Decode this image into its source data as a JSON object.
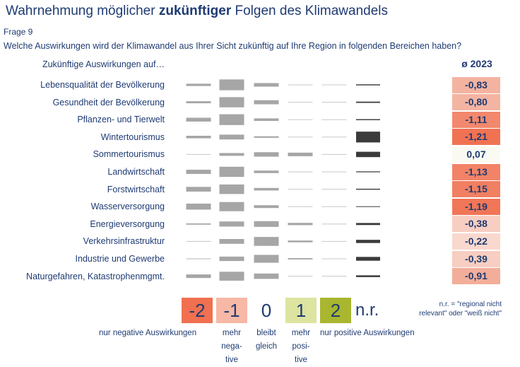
{
  "title": {
    "prefix": "Wahrnehmung möglicher ",
    "bold": "zukünftiger",
    "suffix": " Folgen des Klimawandels"
  },
  "frage": "Frage 9",
  "question": "Welche Auswirkungen wird der Klimawandel aus Ihrer Sicht zukünftig auf Ihre Region in folgenden Bereichen haben?",
  "header_label": "Zukünftige Auswirkungen auf…",
  "avg_header": "ø 2023",
  "colors": {
    "bar": "#a6a6a6",
    "nr_bar": "#3b3b3b",
    "neg2": "#f07050",
    "neg1": "#f7b8a5",
    "zero": "#ffffff",
    "pos1": "#dde4a0",
    "pos2": "#a9b62f",
    "text": "#1f3b73"
  },
  "chart_data": {
    "type": "table",
    "categories": [
      "-2",
      "-1",
      "0",
      "1",
      "2",
      "n.r."
    ],
    "value_unit": "relative share of responses (0–1, visual estimate)",
    "rows": [
      {
        "label": "Lebensqualität der Bevölkerung",
        "avg": "-0,83",
        "shares": [
          0.18,
          0.85,
          0.28,
          0.06,
          0.01,
          0.08
        ]
      },
      {
        "label": "Gesundheit der Bevölkerung",
        "avg": "-0,80",
        "shares": [
          0.16,
          0.8,
          0.32,
          0.05,
          0.01,
          0.1
        ]
      },
      {
        "label": "Pflanzen- und Tierwelt",
        "avg": "-1,11",
        "shares": [
          0.3,
          0.85,
          0.2,
          0.05,
          0.02,
          0.08
        ]
      },
      {
        "label": "Wintertourismus",
        "avg": "-1,21",
        "shares": [
          0.2,
          0.38,
          0.12,
          0.03,
          0.01,
          0.85
        ]
      },
      {
        "label": "Sommertourismus",
        "avg": "0,07",
        "shares": [
          0.05,
          0.22,
          0.35,
          0.28,
          0.04,
          0.42
        ]
      },
      {
        "label": "Landwirtschaft",
        "avg": "-1,13",
        "shares": [
          0.33,
          0.8,
          0.2,
          0.06,
          0.01,
          0.07
        ]
      },
      {
        "label": "Forstwirtschaft",
        "avg": "-1,15",
        "shares": [
          0.37,
          0.75,
          0.2,
          0.05,
          0.01,
          0.08
        ]
      },
      {
        "label": "Wasserversorgung",
        "avg": "-1,19",
        "shares": [
          0.47,
          0.72,
          0.22,
          0.04,
          0.01,
          0.05
        ]
      },
      {
        "label": "Energieversorgung",
        "avg": "-0,38",
        "shares": [
          0.1,
          0.4,
          0.45,
          0.18,
          0.03,
          0.16
        ]
      },
      {
        "label": "Verkehrsinfrastruktur",
        "avg": "-0,22",
        "shares": [
          0.06,
          0.38,
          0.7,
          0.14,
          0.02,
          0.25
        ]
      },
      {
        "label": "Industrie und Gewerbe",
        "avg": "-0,39",
        "shares": [
          0.08,
          0.35,
          0.62,
          0.1,
          0.02,
          0.3
        ]
      },
      {
        "label": "Naturgefahren, Katastrophenmgmt.",
        "avg": "-0,91",
        "shares": [
          0.28,
          0.7,
          0.42,
          0.05,
          0.01,
          0.14
        ]
      }
    ],
    "avg_colors": [
      "neg1",
      "neg1",
      "neg2",
      "neg2",
      "zero",
      "neg2",
      "neg2",
      "neg2",
      "neg1",
      "neg1",
      "neg1",
      "neg1"
    ],
    "avg_intensity": [
      0.83,
      0.8,
      1.11,
      1.21,
      0.0,
      1.13,
      1.15,
      1.19,
      0.38,
      0.22,
      0.39,
      0.91
    ]
  },
  "legend": {
    "boxes": [
      "-2",
      "-1",
      "0",
      "1",
      "2"
    ],
    "nr": "n.r.",
    "note_line1": "n.r. = \"regional nicht",
    "note_line2": "relevant\" oder \"weiß nicht\"",
    "texts": {
      "neg2": "nur negative Auswirkungen",
      "neg1_l1": "mehr",
      "neg1_l2": "nega-",
      "neg1_l3": "tive",
      "zero_l1": "bleibt",
      "zero_l2": "gleich",
      "pos1_l1": "mehr",
      "pos1_l2": "posi-",
      "pos1_l3": "tive",
      "pos2": "nur positive Auswirkungen"
    }
  }
}
